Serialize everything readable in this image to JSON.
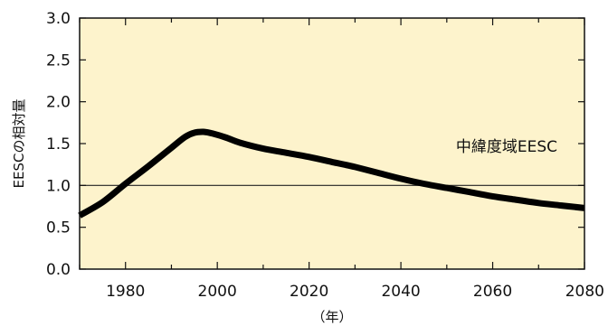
{
  "chart_data": {
    "type": "line",
    "ylabel": "EESCの相対量",
    "xlabel": "（年）",
    "xlim": [
      1970,
      2080
    ],
    "ylim": [
      0.0,
      3.0
    ],
    "xticks": [
      "1980",
      "2000",
      "2020",
      "2040",
      "2060",
      "2080"
    ],
    "yticks": [
      "0.0",
      "0.5",
      "1.0",
      "1.5",
      "2.0",
      "2.5",
      "3.0"
    ],
    "reference_line": 1.0,
    "background_color": "#fdf3cc",
    "line_color": "#000000",
    "grid": false,
    "series": [
      {
        "name": "中緯度域EESC",
        "x": [
          1970,
          1975,
          1980,
          1985,
          1990,
          1993,
          1995,
          1997,
          1999,
          2002,
          2005,
          2010,
          2015,
          2020,
          2025,
          2030,
          2035,
          2040,
          2045,
          2050,
          2055,
          2060,
          2065,
          2070,
          2075,
          2080
        ],
        "values": [
          0.64,
          0.8,
          1.02,
          1.23,
          1.45,
          1.58,
          1.63,
          1.64,
          1.62,
          1.57,
          1.51,
          1.44,
          1.39,
          1.34,
          1.28,
          1.22,
          1.15,
          1.08,
          1.02,
          0.97,
          0.92,
          0.87,
          0.83,
          0.79,
          0.76,
          0.73
        ]
      }
    ]
  }
}
